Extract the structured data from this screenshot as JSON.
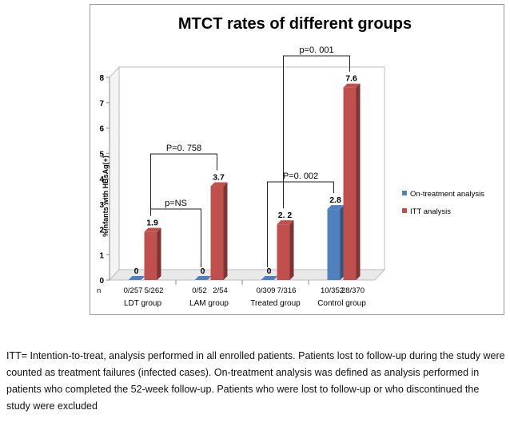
{
  "chart_data": {
    "type": "bar",
    "title": "MTCT rates of different groups",
    "ylabel": "%infants with HBsAg(+)",
    "ylim": [
      0,
      8
    ],
    "yticks": [
      "0",
      "1",
      "2",
      "3",
      "4",
      "5",
      "6",
      "7",
      "8"
    ],
    "x_row_label": "n",
    "groups": [
      {
        "name": "LDT group",
        "counts": [
          "0/257",
          "5/262"
        ]
      },
      {
        "name": "LAM group",
        "counts": [
          "0/52",
          "2/54"
        ]
      },
      {
        "name": "Treated group",
        "counts": [
          "0/309",
          "7/316"
        ]
      },
      {
        "name": "Control group",
        "counts": [
          "10/352",
          "28/370"
        ]
      }
    ],
    "series": [
      {
        "name": "On-treatment analysis",
        "color": "#4f81bd",
        "values": [
          0,
          0,
          0,
          2.8
        ],
        "labels": [
          "0",
          "0",
          "0",
          "2.8"
        ]
      },
      {
        "name": "ITT analysis",
        "color": "#c0504d",
        "values": [
          1.9,
          3.7,
          2.2,
          7.6
        ],
        "labels": [
          "1.9",
          "3.7",
          "2. 2",
          "7.6"
        ]
      }
    ],
    "legend_position": "right",
    "grid": false,
    "annotations": [
      "p=NS",
      "P=0. 758",
      "P=0. 002",
      "p=0. 001"
    ]
  },
  "caption": "ITT= Intention-to-treat, analysis performed in all enrolled patients. Patients lost to follow-up during the study were counted as treatment failures (infected cases). On-treatment analysis was defined as analysis performed in patients who completed the 52-week follow-up. Patients who were lost to follow-up or who discontinued the study were excluded"
}
